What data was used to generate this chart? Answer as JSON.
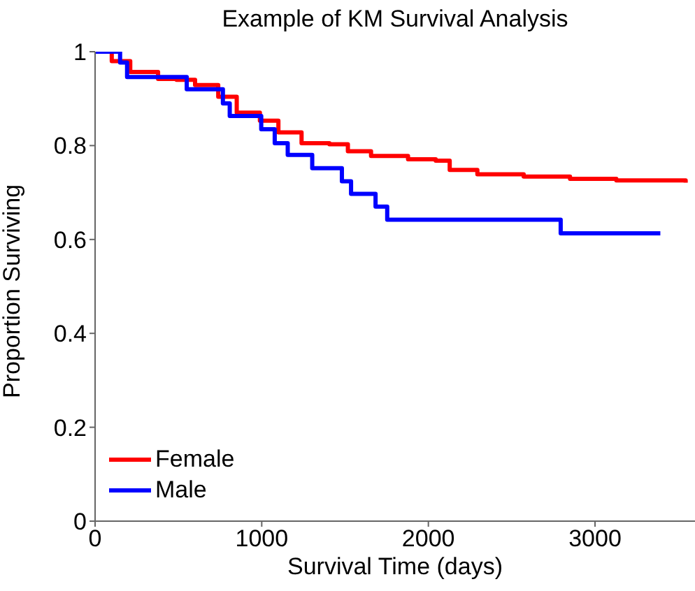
{
  "chart_data": {
    "type": "step",
    "title": "Example of KM Survival Analysis",
    "xlabel": "Survival Time (days)",
    "ylabel": "Proportion Surviving",
    "xlim": [
      0,
      3600
    ],
    "xticks": [
      0,
      1000,
      2000,
      3000
    ],
    "ylim": [
      0,
      1
    ],
    "yticks": [
      0,
      0.2,
      0.4,
      0.6,
      0.8,
      1
    ],
    "grid": false,
    "legend": "bottom left",
    "marker": "none",
    "line_style": "solid",
    "series": [
      {
        "name": "Female",
        "color": "#ff0000",
        "x": [
          0,
          100,
          211,
          378,
          489,
          600,
          739,
          850,
          989,
          1100,
          1239,
          1406,
          1517,
          1656,
          1878,
          2044,
          2128,
          2294,
          2572,
          2850,
          3128,
          3544
        ],
        "values": [
          1,
          0.98,
          0.957,
          0.942,
          0.94,
          0.929,
          0.904,
          0.87,
          0.853,
          0.828,
          0.805,
          0.803,
          0.788,
          0.778,
          0.771,
          0.768,
          0.748,
          0.739,
          0.734,
          0.729,
          0.726,
          0.721
        ]
      },
      {
        "name": "Male",
        "color": "#0000ff",
        "x": [
          0,
          150,
          192,
          550,
          767,
          808,
          997,
          1078,
          1156,
          1303,
          1481,
          1536,
          1683,
          1753,
          2794,
          3392
        ],
        "values": [
          1,
          0.977,
          0.946,
          0.92,
          0.89,
          0.863,
          0.835,
          0.805,
          0.78,
          0.752,
          0.724,
          0.697,
          0.67,
          0.642,
          0.613,
          0.613
        ]
      }
    ]
  }
}
